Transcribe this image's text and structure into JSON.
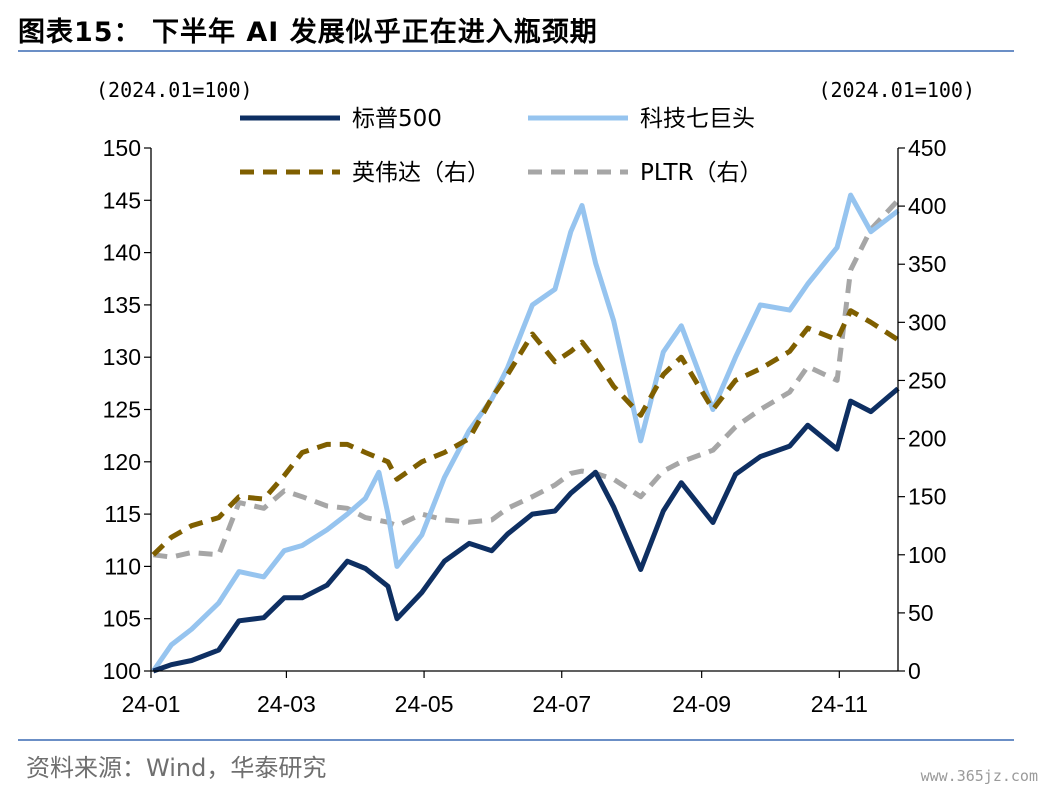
{
  "figure": {
    "title": "图表15：  下半年 AI 发展似乎正在进入瓶颈期",
    "source": "资料来源：Wind，华泰研究",
    "watermark": "www.365jz.com"
  },
  "chart_data": {
    "type": "line",
    "left_axis_unit": "(2024.01=100)",
    "right_axis_unit": "(2024.01=100)",
    "x_ticks": [
      "24-01",
      "24-03",
      "24-05",
      "24-07",
      "24-09",
      "24-11"
    ],
    "x_range": [
      "2024-01-02",
      "2024-11-27"
    ],
    "y_left": {
      "min": 100,
      "max": 150,
      "ticks": [
        100,
        105,
        110,
        115,
        120,
        125,
        130,
        135,
        140,
        145,
        150
      ]
    },
    "y_right": {
      "min": 0,
      "max": 450,
      "ticks": [
        0,
        50,
        100,
        150,
        200,
        250,
        300,
        350,
        400,
        450
      ]
    },
    "series": [
      {
        "name": "标普500",
        "axis": "left",
        "color": "#0e2f62",
        "dash": false,
        "points": [
          [
            "2024-01-02",
            100.0
          ],
          [
            "2024-01-10",
            100.6
          ],
          [
            "2024-01-19",
            101.0
          ],
          [
            "2024-01-31",
            102.0
          ],
          [
            "2024-02-09",
            104.8
          ],
          [
            "2024-02-20",
            105.1
          ],
          [
            "2024-02-29",
            107.0
          ],
          [
            "2024-03-08",
            107.0
          ],
          [
            "2024-03-19",
            108.2
          ],
          [
            "2024-03-28",
            110.5
          ],
          [
            "2024-04-05",
            109.8
          ],
          [
            "2024-04-15",
            108.1
          ],
          [
            "2024-04-19",
            105.0
          ],
          [
            "2024-04-30",
            107.5
          ],
          [
            "2024-05-10",
            110.5
          ],
          [
            "2024-05-21",
            112.2
          ],
          [
            "2024-05-31",
            111.5
          ],
          [
            "2024-06-07",
            113.1
          ],
          [
            "2024-06-18",
            115.0
          ],
          [
            "2024-06-28",
            115.3
          ],
          [
            "2024-07-05",
            117.0
          ],
          [
            "2024-07-16",
            119.0
          ],
          [
            "2024-07-24",
            115.7
          ],
          [
            "2024-08-05",
            109.7
          ],
          [
            "2024-08-15",
            115.3
          ],
          [
            "2024-08-23",
            118.0
          ],
          [
            "2024-09-06",
            114.2
          ],
          [
            "2024-09-16",
            118.8
          ],
          [
            "2024-09-27",
            120.5
          ],
          [
            "2024-10-10",
            121.5
          ],
          [
            "2024-10-18",
            123.5
          ],
          [
            "2024-10-31",
            121.2
          ],
          [
            "2024-11-06",
            125.8
          ],
          [
            "2024-11-15",
            124.8
          ],
          [
            "2024-11-27",
            127.0
          ]
        ]
      },
      {
        "name": "科技七巨头",
        "axis": "left",
        "color": "#96c4ef",
        "dash": false,
        "points": [
          [
            "2024-01-02",
            100.0
          ],
          [
            "2024-01-10",
            102.5
          ],
          [
            "2024-01-19",
            104.0
          ],
          [
            "2024-01-31",
            106.5
          ],
          [
            "2024-02-09",
            109.5
          ],
          [
            "2024-02-20",
            109.0
          ],
          [
            "2024-02-29",
            111.5
          ],
          [
            "2024-03-08",
            112.0
          ],
          [
            "2024-03-19",
            113.5
          ],
          [
            "2024-03-28",
            115.0
          ],
          [
            "2024-04-05",
            116.5
          ],
          [
            "2024-04-11",
            119.0
          ],
          [
            "2024-04-15",
            115.0
          ],
          [
            "2024-04-19",
            110.0
          ],
          [
            "2024-04-30",
            113.0
          ],
          [
            "2024-05-10",
            118.5
          ],
          [
            "2024-05-21",
            123.0
          ],
          [
            "2024-05-31",
            126.0
          ],
          [
            "2024-06-07",
            129.0
          ],
          [
            "2024-06-18",
            135.0
          ],
          [
            "2024-06-28",
            136.5
          ],
          [
            "2024-07-05",
            142.0
          ],
          [
            "2024-07-10",
            144.5
          ],
          [
            "2024-07-16",
            139.0
          ],
          [
            "2024-07-24",
            133.5
          ],
          [
            "2024-08-05",
            122.0
          ],
          [
            "2024-08-15",
            130.5
          ],
          [
            "2024-08-23",
            133.0
          ],
          [
            "2024-09-06",
            125.0
          ],
          [
            "2024-09-16",
            130.0
          ],
          [
            "2024-09-27",
            135.0
          ],
          [
            "2024-10-10",
            134.5
          ],
          [
            "2024-10-18",
            137.0
          ],
          [
            "2024-10-31",
            140.5
          ],
          [
            "2024-11-06",
            145.5
          ],
          [
            "2024-11-15",
            142.0
          ],
          [
            "2024-11-27",
            144.0
          ]
        ]
      },
      {
        "name": "英伟达（右）",
        "axis": "right",
        "color": "#7f5f00",
        "dash": true,
        "points": [
          [
            "2024-01-02",
            100.0
          ],
          [
            "2024-01-10",
            115.0
          ],
          [
            "2024-01-19",
            125.0
          ],
          [
            "2024-01-31",
            132.0
          ],
          [
            "2024-02-09",
            150.0
          ],
          [
            "2024-02-20",
            148.0
          ],
          [
            "2024-02-29",
            168.0
          ],
          [
            "2024-03-08",
            188.0
          ],
          [
            "2024-03-19",
            195.0
          ],
          [
            "2024-03-28",
            195.0
          ],
          [
            "2024-04-05",
            188.0
          ],
          [
            "2024-04-15",
            180.0
          ],
          [
            "2024-04-19",
            165.0
          ],
          [
            "2024-04-30",
            180.0
          ],
          [
            "2024-05-10",
            188.0
          ],
          [
            "2024-05-21",
            200.0
          ],
          [
            "2024-05-31",
            235.0
          ],
          [
            "2024-06-07",
            255.0
          ],
          [
            "2024-06-18",
            290.0
          ],
          [
            "2024-06-28",
            266.0
          ],
          [
            "2024-07-05",
            275.0
          ],
          [
            "2024-07-10",
            283.0
          ],
          [
            "2024-07-16",
            268.0
          ],
          [
            "2024-07-24",
            245.0
          ],
          [
            "2024-08-05",
            220.0
          ],
          [
            "2024-08-15",
            255.0
          ],
          [
            "2024-08-23",
            270.0
          ],
          [
            "2024-09-06",
            225.0
          ],
          [
            "2024-09-16",
            250.0
          ],
          [
            "2024-09-27",
            260.0
          ],
          [
            "2024-10-10",
            275.0
          ],
          [
            "2024-10-18",
            295.0
          ],
          [
            "2024-10-31",
            285.0
          ],
          [
            "2024-11-06",
            310.0
          ],
          [
            "2024-11-15",
            300.0
          ],
          [
            "2024-11-27",
            285.0
          ]
        ]
      },
      {
        "name": "PLTR（右）",
        "axis": "right",
        "color": "#a6a6a6",
        "dash": true,
        "points": [
          [
            "2024-01-02",
            100.0
          ],
          [
            "2024-01-10",
            98.0
          ],
          [
            "2024-01-19",
            102.0
          ],
          [
            "2024-01-31",
            100.0
          ],
          [
            "2024-02-09",
            145.0
          ],
          [
            "2024-02-20",
            140.0
          ],
          [
            "2024-02-29",
            155.0
          ],
          [
            "2024-03-08",
            150.0
          ],
          [
            "2024-03-19",
            142.0
          ],
          [
            "2024-03-28",
            140.0
          ],
          [
            "2024-04-05",
            132.0
          ],
          [
            "2024-04-15",
            128.0
          ],
          [
            "2024-04-19",
            125.0
          ],
          [
            "2024-04-30",
            135.0
          ],
          [
            "2024-05-10",
            130.0
          ],
          [
            "2024-05-21",
            128.0
          ],
          [
            "2024-05-31",
            130.0
          ],
          [
            "2024-06-07",
            140.0
          ],
          [
            "2024-06-18",
            150.0
          ],
          [
            "2024-06-28",
            160.0
          ],
          [
            "2024-07-05",
            170.0
          ],
          [
            "2024-07-10",
            172.0
          ],
          [
            "2024-07-16",
            170.0
          ],
          [
            "2024-07-24",
            165.0
          ],
          [
            "2024-08-05",
            150.0
          ],
          [
            "2024-08-15",
            172.0
          ],
          [
            "2024-08-23",
            180.0
          ],
          [
            "2024-09-06",
            190.0
          ],
          [
            "2024-09-16",
            210.0
          ],
          [
            "2024-09-27",
            225.0
          ],
          [
            "2024-10-10",
            240.0
          ],
          [
            "2024-10-18",
            262.0
          ],
          [
            "2024-10-31",
            250.0
          ],
          [
            "2024-11-06",
            345.0
          ],
          [
            "2024-11-15",
            380.0
          ],
          [
            "2024-11-27",
            405.0
          ]
        ]
      }
    ]
  }
}
